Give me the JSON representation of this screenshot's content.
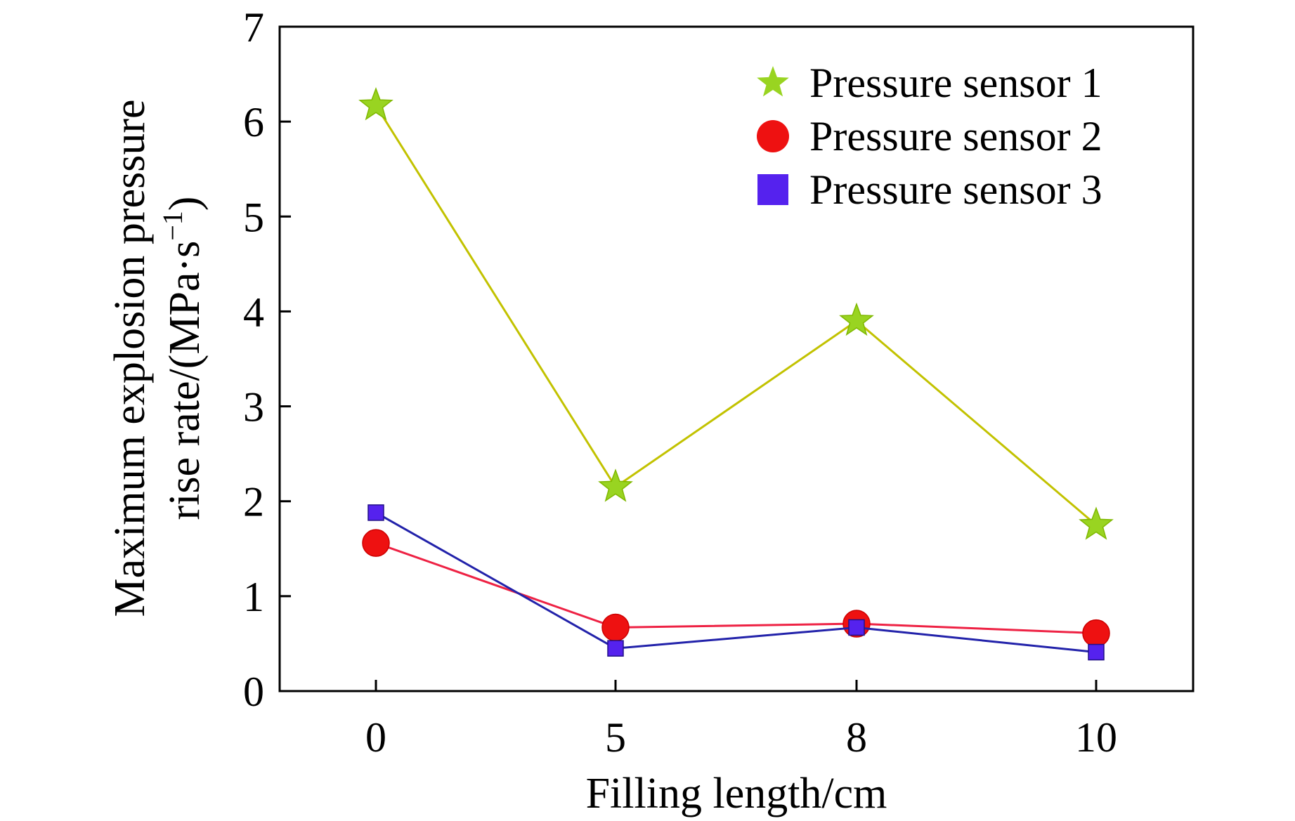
{
  "chart_data": {
    "type": "line",
    "title": "",
    "categories": [
      "0",
      "5",
      "8",
      "10"
    ],
    "xlabel": "Filling length/cm",
    "ylabel_line1": "Maximum explosion pressure",
    "ylabel_line2_prefix": "rise rate/(MPa·s",
    "ylabel_sup": "−1",
    "ylabel_line2_suffix": ")",
    "ylim": [
      0,
      7
    ],
    "yticks": [
      "0",
      "1",
      "2",
      "3",
      "4",
      "5",
      "6",
      "7"
    ],
    "grid": false,
    "legend_position": "top-right",
    "series": [
      {
        "name": "Pressure sensor 1",
        "marker": "star",
        "color": "#99d421",
        "line_color": "#c2c200",
        "values": [
          6.17,
          2.15,
          3.9,
          1.75
        ]
      },
      {
        "name": "Pressure sensor 2",
        "marker": "circle",
        "color": "#ee1111",
        "line_color": "#ee2244",
        "values": [
          1.56,
          0.67,
          0.71,
          0.61
        ]
      },
      {
        "name": "Pressure sensor 3",
        "marker": "square",
        "color": "#5522ee",
        "line_color": "#2222aa",
        "values": [
          1.88,
          0.45,
          0.67,
          0.41
        ]
      }
    ]
  }
}
